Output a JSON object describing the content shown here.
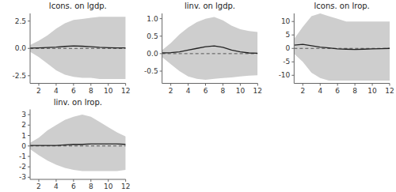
{
  "chart_data": [
    {
      "type": "line",
      "title": "lcons. on lgdp.",
      "x": [
        1,
        2,
        3,
        4,
        5,
        6,
        7,
        8,
        9,
        10,
        11,
        12
      ],
      "series": [
        {
          "type": "band",
          "color": "#cecece",
          "upper": [
            0.3,
            0.7,
            1.2,
            1.8,
            2.3,
            2.6,
            2.7,
            2.8,
            2.9,
            2.9,
            2.9,
            2.9
          ],
          "lower": [
            -0.3,
            -0.8,
            -1.4,
            -2.0,
            -2.4,
            -2.6,
            -2.7,
            -2.7,
            -2.8,
            -2.8,
            -2.8,
            -2.8
          ]
        },
        {
          "type": "line",
          "color": "#222222",
          "values": [
            0.03,
            0.05,
            0.08,
            0.12,
            0.18,
            0.22,
            0.2,
            0.15,
            0.1,
            0.07,
            0.05,
            0.04
          ]
        }
      ],
      "hlines": [
        {
          "value": 0,
          "color": "#555555",
          "line_style": "dashed"
        }
      ],
      "xlim": [
        1,
        12
      ],
      "xticks": [
        2,
        4,
        6,
        8,
        10,
        12
      ],
      "ylim": [
        -3.2,
        3.2
      ],
      "yticks": [
        -2.5,
        {
          "value": 0.0,
          "label": "0.0"
        },
        2.5
      ],
      "grid": false
    },
    {
      "type": "line",
      "title": "linv. on lgdp.",
      "x": [
        1,
        2,
        3,
        4,
        5,
        6,
        7,
        8,
        9,
        10,
        11,
        12
      ],
      "series": [
        {
          "type": "band",
          "color": "#cecece",
          "upper": [
            0.1,
            0.3,
            0.55,
            0.75,
            0.9,
            1.0,
            1.05,
            0.95,
            0.8,
            0.7,
            0.65,
            0.62
          ],
          "lower": [
            -0.1,
            -0.3,
            -0.5,
            -0.65,
            -0.72,
            -0.75,
            -0.72,
            -0.7,
            -0.68,
            -0.65,
            -0.63,
            -0.62
          ]
        },
        {
          "type": "line",
          "color": "#222222",
          "values": [
            0.02,
            0.03,
            0.05,
            0.1,
            0.15,
            0.2,
            0.22,
            0.18,
            0.1,
            0.05,
            0.02,
            0.01
          ]
        }
      ],
      "hlines": [
        {
          "value": 0,
          "color": "#555555",
          "line_style": "dashed"
        }
      ],
      "xlim": [
        1,
        12
      ],
      "xticks": [
        2,
        4,
        6,
        8,
        10,
        12
      ],
      "ylim": [
        -0.85,
        1.15
      ],
      "yticks": [
        -0.5,
        {
          "value": 0.0,
          "label": "0.0"
        },
        0.5,
        {
          "value": 1.0,
          "label": "1.0"
        }
      ],
      "grid": false
    },
    {
      "type": "line",
      "title": "lcons. on lrop.",
      "x": [
        1,
        2,
        3,
        4,
        5,
        6,
        7,
        8,
        9,
        10,
        11,
        12
      ],
      "series": [
        {
          "type": "band",
          "color": "#cecece",
          "upper": [
            3.5,
            8.0,
            12.0,
            13.0,
            12.0,
            11.0,
            10.0,
            10.0,
            10.0,
            10.0,
            10.0,
            10.0
          ],
          "lower": [
            -2.0,
            -5.0,
            -9.0,
            -11.0,
            -12.0,
            -12.0,
            -12.0,
            -12.0,
            -12.0,
            -12.0,
            -12.0,
            -12.0
          ]
        },
        {
          "type": "line",
          "color": "#222222",
          "values": [
            1.2,
            1.5,
            1.0,
            0.5,
            0.2,
            -0.2,
            -0.3,
            -0.4,
            -0.3,
            -0.2,
            -0.1,
            0.0
          ]
        }
      ],
      "hlines": [
        {
          "value": 0,
          "color": "#555555",
          "line_style": "dashed"
        }
      ],
      "xlim": [
        1,
        12
      ],
      "xticks": [
        2,
        4,
        6,
        8,
        10,
        12
      ],
      "ylim": [
        -13,
        13
      ],
      "yticks": [
        -10,
        -5,
        0,
        5,
        10
      ],
      "grid": false
    },
    {
      "type": "line",
      "title": "linv. on lrop.",
      "x": [
        1,
        2,
        3,
        4,
        5,
        6,
        7,
        8,
        9,
        10,
        11,
        12
      ],
      "series": [
        {
          "type": "band",
          "color": "#cecece",
          "upper": [
            0.3,
            0.8,
            1.5,
            2.0,
            2.5,
            2.8,
            3.0,
            2.8,
            2.3,
            1.8,
            1.3,
            0.9
          ],
          "lower": [
            -0.3,
            -0.9,
            -1.4,
            -1.8,
            -2.1,
            -2.3,
            -2.4,
            -2.4,
            -2.4,
            -2.4,
            -2.4,
            -2.3
          ]
        },
        {
          "type": "line",
          "color": "#222222",
          "values": [
            0.05,
            0.05,
            0.05,
            0.05,
            0.1,
            0.15,
            0.15,
            0.2,
            0.2,
            0.2,
            0.2,
            0.15
          ]
        }
      ],
      "hlines": [
        {
          "value": 0,
          "color": "#555555",
          "line_style": "dashed"
        }
      ],
      "xlim": [
        1,
        12
      ],
      "xticks": [
        2,
        4,
        6,
        8,
        10,
        12
      ],
      "ylim": [
        -3.2,
        3.5
      ],
      "yticks": [
        -3,
        -2,
        -1,
        0,
        1,
        2,
        3
      ],
      "grid": false
    }
  ]
}
